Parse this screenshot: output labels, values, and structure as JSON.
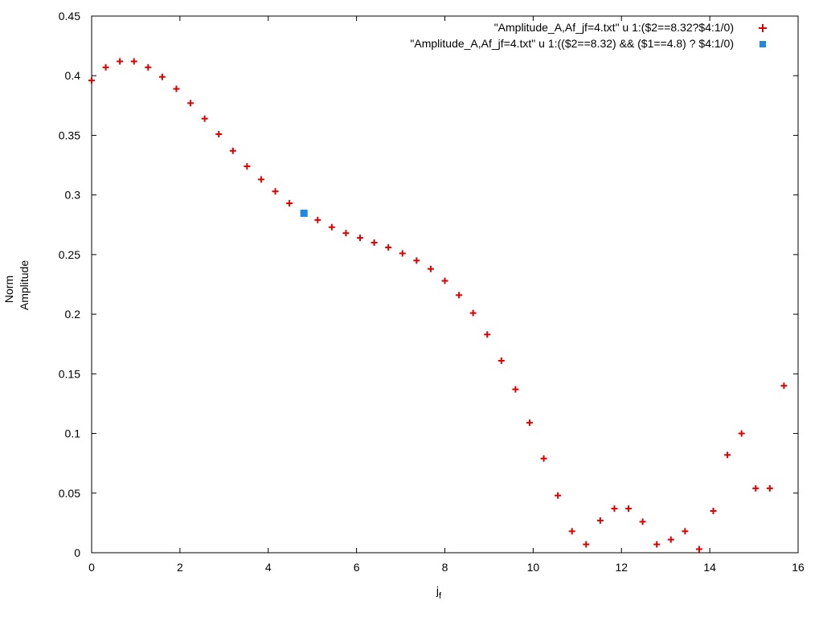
{
  "chart_data": {
    "type": "scatter",
    "title": "",
    "xlabel": "j",
    "xlabel_subscript": "f",
    "ylabel_line1": "Norm",
    "ylabel_line2": "Amplitude",
    "xlim": [
      0,
      16
    ],
    "ylim": [
      0,
      0.45
    ],
    "x_ticks": [
      "0",
      "2",
      "4",
      "6",
      "8",
      "10",
      "12",
      "14",
      "16"
    ],
    "y_ticks": [
      "0",
      "0.05",
      "0.1",
      "0.15",
      "0.2",
      "0.25",
      "0.3",
      "0.35",
      "0.4",
      "0.45"
    ],
    "grid": false,
    "legend_position": "top-right",
    "series": [
      {
        "name": "\"Amplitude_A,Af_jf=4.txt\" u 1:($2==8.32?$4:1/0)",
        "marker": "plus",
        "color": "#e00000",
        "x": [
          0,
          0.32,
          0.64,
          0.96,
          1.28,
          1.6,
          1.92,
          2.24,
          2.56,
          2.88,
          3.2,
          3.52,
          3.84,
          4.16,
          4.48,
          4.8,
          5.12,
          5.44,
          5.76,
          6.08,
          6.4,
          6.72,
          7.04,
          7.36,
          7.68,
          8.0,
          8.32,
          8.64,
          8.96,
          9.28,
          9.6,
          9.92,
          10.24,
          10.56,
          10.88,
          11.2,
          11.52,
          11.84,
          12.16,
          12.48,
          12.8,
          13.12,
          13.44,
          13.76,
          14.08,
          14.4,
          14.72,
          15.04,
          15.36,
          15.68
        ],
        "y": [
          0.396,
          0.407,
          0.412,
          0.412,
          0.407,
          0.399,
          0.389,
          0.377,
          0.364,
          0.351,
          0.337,
          0.324,
          0.313,
          0.303,
          0.293,
          0.285,
          0.279,
          0.273,
          0.268,
          0.264,
          0.26,
          0.256,
          0.251,
          0.245,
          0.238,
          0.228,
          0.216,
          0.201,
          0.183,
          0.161,
          0.137,
          0.109,
          0.079,
          0.048,
          0.018,
          0.007,
          0.027,
          0.037,
          0.037,
          0.026,
          0.007,
          0.011,
          0.018,
          0.003,
          0.035,
          0.082,
          0.1,
          0.054,
          0.054,
          0.14
        ]
      },
      {
        "name": "\"Amplitude_A,Af_jf=4.txt\" u 1:(($2==8.32) && ($1==4.8) ? $4:1/0)",
        "marker": "square",
        "color": "#1e88e5",
        "x": [
          4.8
        ],
        "y": [
          0.285
        ]
      }
    ]
  }
}
